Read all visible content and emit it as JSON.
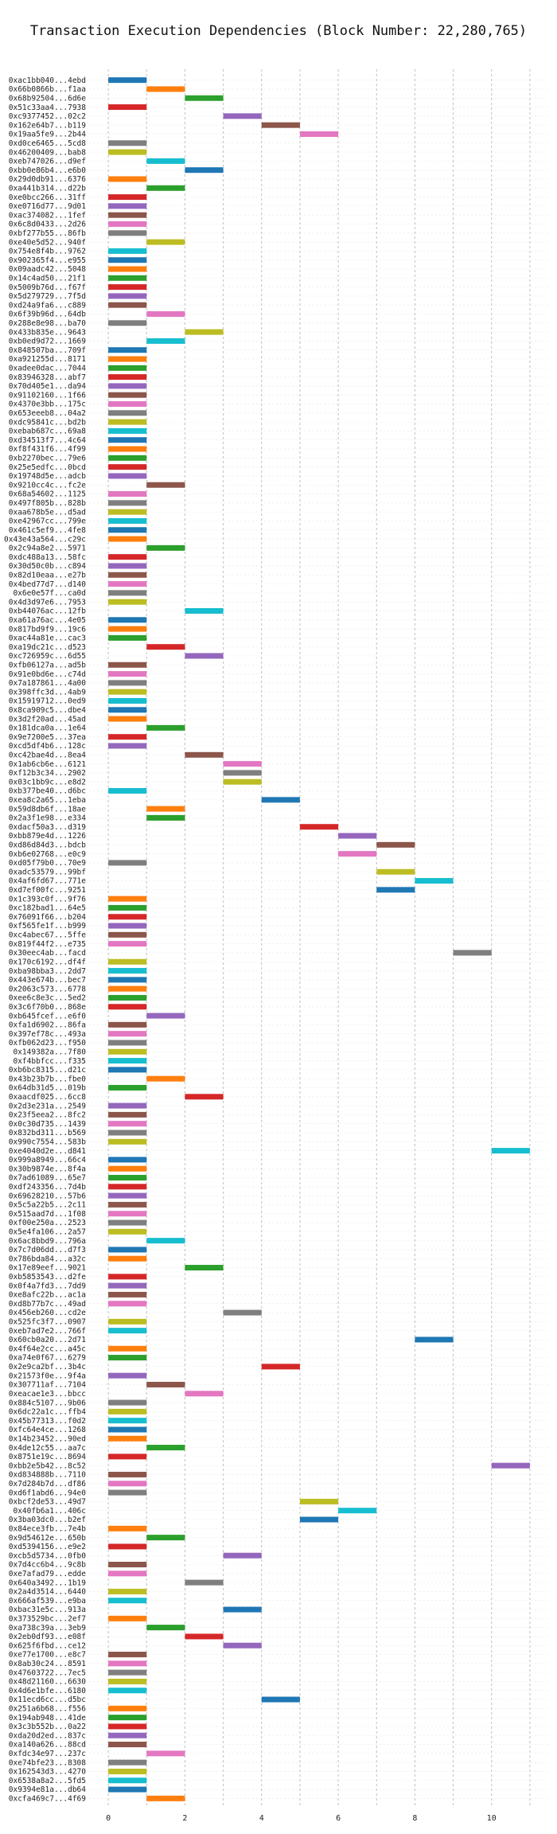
{
  "chart_data": {
    "type": "bar",
    "subtype": "gantt",
    "title": "Transaction Execution Dependencies (Block Number: 22,280,765)",
    "xlabel": "",
    "ylabel": "",
    "xlim": [
      -0.5,
      11.5
    ],
    "xticks": [
      0,
      2,
      4,
      6,
      8,
      10
    ],
    "grid": true,
    "palette": [
      "#1f77b4",
      "#ff7f0e",
      "#2ca02c",
      "#d62728",
      "#9467bd",
      "#8c564b",
      "#e377c2",
      "#7f7f7f",
      "#bcbd22",
      "#17becf"
    ],
    "transactions": [
      {
        "hash": "0xac1bb040...4ebd",
        "start": 0
      },
      {
        "hash": "0x66b0866b...f1aa",
        "start": 1
      },
      {
        "hash": "0x68b92504...6d6e",
        "start": 2
      },
      {
        "hash": "0x51c33aa4...7938",
        "start": 0
      },
      {
        "hash": "0xc9377452...02c2",
        "start": 3
      },
      {
        "hash": "0x162e64b7...b119",
        "start": 4
      },
      {
        "hash": "0x19aa5fe9...2b44",
        "start": 5
      },
      {
        "hash": "0xd0ce6465...5cd8",
        "start": 0
      },
      {
        "hash": "0x46200409...bab8",
        "start": 0
      },
      {
        "hash": "0xeb747026...d9ef",
        "start": 1
      },
      {
        "hash": "0xbb0e86b4...e6b0",
        "start": 2
      },
      {
        "hash": "0x29d0db91...6376",
        "start": 0
      },
      {
        "hash": "0xa441b314...d22b",
        "start": 1
      },
      {
        "hash": "0xe0bcc266...31ff",
        "start": 0
      },
      {
        "hash": "0xe0716d77...9d01",
        "start": 0
      },
      {
        "hash": "0xac374082...1fef",
        "start": 0
      },
      {
        "hash": "0x6c8d0433...2d26",
        "start": 0
      },
      {
        "hash": "0xbf277b55...86fb",
        "start": 0
      },
      {
        "hash": "0xe40e5d52...940f",
        "start": 1
      },
      {
        "hash": "0x754e8f4b...9762",
        "start": 0
      },
      {
        "hash": "0x902365f4...e955",
        "start": 0
      },
      {
        "hash": "0x09aadc42...5048",
        "start": 0
      },
      {
        "hash": "0x14c4ad50...21f1",
        "start": 0
      },
      {
        "hash": "0x5009b76d...f67f",
        "start": 0
      },
      {
        "hash": "0x5d279729...7f5d",
        "start": 0
      },
      {
        "hash": "0xd24a9fa6...c889",
        "start": 0
      },
      {
        "hash": "0x6f39b96d...64db",
        "start": 1
      },
      {
        "hash": "0x288e8e98...ba70",
        "start": 0
      },
      {
        "hash": "0x433b835e...9643",
        "start": 2
      },
      {
        "hash": "0xb0ed9d72...1669",
        "start": 1
      },
      {
        "hash": "0x848507ba...709f",
        "start": 0
      },
      {
        "hash": "0xa921255d...8171",
        "start": 0
      },
      {
        "hash": "0xadee0dac...7044",
        "start": 0
      },
      {
        "hash": "0x83946328...abf7",
        "start": 0
      },
      {
        "hash": "0x70d405e1...da94",
        "start": 0
      },
      {
        "hash": "0x91102160...1f66",
        "start": 0
      },
      {
        "hash": "0x4370e3bb...175c",
        "start": 0
      },
      {
        "hash": "0x653eeeb8...04a2",
        "start": 0
      },
      {
        "hash": "0xdc95841c...bd2b",
        "start": 0
      },
      {
        "hash": "0xebab687c...69a8",
        "start": 0
      },
      {
        "hash": "0xd34513f7...4c64",
        "start": 0
      },
      {
        "hash": "0xf8f431f6...4f99",
        "start": 0
      },
      {
        "hash": "0xb2270bec...79e6",
        "start": 0
      },
      {
        "hash": "0x25e5edfc...0bcd",
        "start": 0
      },
      {
        "hash": "0x19748d5e...adcb",
        "start": 0
      },
      {
        "hash": "0x9210cc4c...fc2e",
        "start": 1
      },
      {
        "hash": "0x68a54602...1125",
        "start": 0
      },
      {
        "hash": "0x497f805b...828b",
        "start": 0
      },
      {
        "hash": "0xaa678b5e...d5ad",
        "start": 0
      },
      {
        "hash": "0xe42967cc...799e",
        "start": 0
      },
      {
        "hash": "0x461c5ef9...4fe8",
        "start": 0
      },
      {
        "hash": "0x43e43a564...c29c",
        "start": 0
      },
      {
        "hash": "0x2c94a8e2...5971",
        "start": 1
      },
      {
        "hash": "0xdc488a13...58fc",
        "start": 0
      },
      {
        "hash": "0x30d50c0b...c894",
        "start": 0
      },
      {
        "hash": "0x82d10eaa...e27b",
        "start": 0
      },
      {
        "hash": "0x4bed77d7...d140",
        "start": 0
      },
      {
        "hash": "0x6e0e57f...ca0d",
        "start": 0
      },
      {
        "hash": "0x4d3d97e6...7953",
        "start": 0
      },
      {
        "hash": "0xb44076ac...12fb",
        "start": 2
      },
      {
        "hash": "0xa61a76ac...4e05",
        "start": 0
      },
      {
        "hash": "0x817bd9f9...19c6",
        "start": 0
      },
      {
        "hash": "0xac44a81e...cac3",
        "start": 0
      },
      {
        "hash": "0xa19dc21c...d523",
        "start": 1
      },
      {
        "hash": "0xc726959c...6d55",
        "start": 2
      },
      {
        "hash": "0xfb06127a...ad5b",
        "start": 0
      },
      {
        "hash": "0x91e0bd6e...c74d",
        "start": 0
      },
      {
        "hash": "0x7a187861...4a00",
        "start": 0
      },
      {
        "hash": "0x398ffc3d...4ab9",
        "start": 0
      },
      {
        "hash": "0x15919712...0ed9",
        "start": 0
      },
      {
        "hash": "0x8ca909c5...dbe4",
        "start": 0
      },
      {
        "hash": "0x3d2f20ad...45ad",
        "start": 0
      },
      {
        "hash": "0x181dca0a...1e64",
        "start": 1
      },
      {
        "hash": "0x9e7200e5...37ea",
        "start": 0
      },
      {
        "hash": "0xcd5df4b6...128c",
        "start": 0
      },
      {
        "hash": "0xc42bae4d...8ea4",
        "start": 2
      },
      {
        "hash": "0x1ab6cb6e...6121",
        "start": 3
      },
      {
        "hash": "0xf12b3c34...2902",
        "start": 3
      },
      {
        "hash": "0x03c1bb9c...e8d2",
        "start": 3
      },
      {
        "hash": "0xb377be40...d6bc",
        "start": 0
      },
      {
        "hash": "0xea8c2a65...1eba",
        "start": 4
      },
      {
        "hash": "0x59d8db6f...18ae",
        "start": 1
      },
      {
        "hash": "0x2a3f1e98...e334",
        "start": 1
      },
      {
        "hash": "0xdacf50a3...d319",
        "start": 5
      },
      {
        "hash": "0xbb879e4d...1226",
        "start": 6
      },
      {
        "hash": "0xd86d84d3...bdcb",
        "start": 7
      },
      {
        "hash": "0xb6e02768...e0c9",
        "start": 6
      },
      {
        "hash": "0xd05f79b0...70e9",
        "start": 0
      },
      {
        "hash": "0xadc53579...99bf",
        "start": 7
      },
      {
        "hash": "0x4af6fd67...771e",
        "start": 8
      },
      {
        "hash": "0xd7ef00fc...9251",
        "start": 7
      },
      {
        "hash": "0x1c393c0f...9f76",
        "start": 0
      },
      {
        "hash": "0xc182bad1...64e5",
        "start": 0
      },
      {
        "hash": "0x76091f66...b204",
        "start": 0
      },
      {
        "hash": "0xf565fe1f...b999",
        "start": 0
      },
      {
        "hash": "0xc4abec67...5ffe",
        "start": 0
      },
      {
        "hash": "0x819f44f2...e735",
        "start": 0
      },
      {
        "hash": "0x30eec4ab...facd",
        "start": 9
      },
      {
        "hash": "0x170c6192...df4f",
        "start": 0
      },
      {
        "hash": "0xba98bba3...2dd7",
        "start": 0
      },
      {
        "hash": "0x443e674b...bec7",
        "start": 0
      },
      {
        "hash": "0x2063c573...6778",
        "start": 0
      },
      {
        "hash": "0xee6c8e3c...5ed2",
        "start": 0
      },
      {
        "hash": "0x3c6f70b0...868e",
        "start": 0
      },
      {
        "hash": "0xb645fcef...e6f0",
        "start": 1
      },
      {
        "hash": "0xfa1d6902...86fa",
        "start": 0
      },
      {
        "hash": "0x397ef78c...493a",
        "start": 0
      },
      {
        "hash": "0xfb062d23...f950",
        "start": 0
      },
      {
        "hash": "0x149382a...7f80",
        "start": 0
      },
      {
        "hash": "0xf4bbfcc...f335",
        "start": 0
      },
      {
        "hash": "0xb6bc8315...d21c",
        "start": 0
      },
      {
        "hash": "0x43b23b7b...fbe0",
        "start": 1
      },
      {
        "hash": "0x64db31d5...019b",
        "start": 0
      },
      {
        "hash": "0xaacdf025...6cc8",
        "start": 2
      },
      {
        "hash": "0x2d3e231a...2549",
        "start": 0
      },
      {
        "hash": "0x23f5eea2...8fc2",
        "start": 0
      },
      {
        "hash": "0x0c30d735...1439",
        "start": 0
      },
      {
        "hash": "0x832bd311...b569",
        "start": 0
      },
      {
        "hash": "0x990c7554...583b",
        "start": 0
      },
      {
        "hash": "0xe4040d2e...d841",
        "start": 10
      },
      {
        "hash": "0x999a8949...66c4",
        "start": 0
      },
      {
        "hash": "0x30b9874e...8f4a",
        "start": 0
      },
      {
        "hash": "0x7ad61089...65e7",
        "start": 0
      },
      {
        "hash": "0xdf243356...7d4b",
        "start": 0
      },
      {
        "hash": "0x69628210...57b6",
        "start": 0
      },
      {
        "hash": "0x5c5a22b5...2c11",
        "start": 0
      },
      {
        "hash": "0x515aad7d...1f08",
        "start": 0
      },
      {
        "hash": "0xf00e250a...2523",
        "start": 0
      },
      {
        "hash": "0x5e4fa106...2a57",
        "start": 0
      },
      {
        "hash": "0x6ac8bbd9...796a",
        "start": 1
      },
      {
        "hash": "0x7c7d06dd...d7f3",
        "start": 0
      },
      {
        "hash": "0x786bda84...a32c",
        "start": 0
      },
      {
        "hash": "0x17e89eef...9021",
        "start": 2
      },
      {
        "hash": "0xb5853543...d2fe",
        "start": 0
      },
      {
        "hash": "0x0f4a7fd3...7dd9",
        "start": 0
      },
      {
        "hash": "0xe8afc22b...ac1a",
        "start": 0
      },
      {
        "hash": "0xd8b77b7c...49ad",
        "start": 0
      },
      {
        "hash": "0x456eb260...cd2e",
        "start": 3
      },
      {
        "hash": "0x525fc3f7...0907",
        "start": 0
      },
      {
        "hash": "0xeb7ad7e2...766f",
        "start": 0
      },
      {
        "hash": "0x60cb0a20...2d71",
        "start": 8
      },
      {
        "hash": "0x4f64e2cc...a45c",
        "start": 0
      },
      {
        "hash": "0xa74e0f67...6279",
        "start": 0
      },
      {
        "hash": "0x2e9ca2bf...3b4c",
        "start": 4
      },
      {
        "hash": "0x21573f0e...9f4a",
        "start": 0
      },
      {
        "hash": "0x307711af...7104",
        "start": 1
      },
      {
        "hash": "0xeacae1e3...bbcc",
        "start": 2
      },
      {
        "hash": "0x884c5107...9b06",
        "start": 0
      },
      {
        "hash": "0x6dc22a1c...ffb4",
        "start": 0
      },
      {
        "hash": "0x45b77313...f0d2",
        "start": 0
      },
      {
        "hash": "0xfc64e4ce...1268",
        "start": 0
      },
      {
        "hash": "0x14b23452...90ed",
        "start": 0
      },
      {
        "hash": "0x4de12c55...aa7c",
        "start": 1
      },
      {
        "hash": "0x8751e19c...8694",
        "start": 0
      },
      {
        "hash": "0xbb2e5b42...8c52",
        "start": 10
      },
      {
        "hash": "0xd834888b...7110",
        "start": 0
      },
      {
        "hash": "0x7d284b7d...df86",
        "start": 0
      },
      {
        "hash": "0xd6f1abd6...94e0",
        "start": 0
      },
      {
        "hash": "0xbcf2de53...49d7",
        "start": 5
      },
      {
        "hash": "0x40fb6a1...406c",
        "start": 6
      },
      {
        "hash": "0x3ba03dc0...b2ef",
        "start": 5
      },
      {
        "hash": "0x84ece3fb...7e4b",
        "start": 0
      },
      {
        "hash": "0x9d54612e...650b",
        "start": 1
      },
      {
        "hash": "0xd5394156...e9e2",
        "start": 0
      },
      {
        "hash": "0xcb5d5734...0fb0",
        "start": 3
      },
      {
        "hash": "0x7d4cc6b4...9c8b",
        "start": 0
      },
      {
        "hash": "0xe7afad79...edde",
        "start": 0
      },
      {
        "hash": "0x640a3492...1b19",
        "start": 2
      },
      {
        "hash": "0x2a4d3514...6440",
        "start": 0
      },
      {
        "hash": "0x666af539...e9ba",
        "start": 0
      },
      {
        "hash": "0xbac31e5c...913a",
        "start": 3
      },
      {
        "hash": "0x373529bc...2ef7",
        "start": 0
      },
      {
        "hash": "0xa738c39a...3eb9",
        "start": 1
      },
      {
        "hash": "0x2eb0df93...e08f",
        "start": 2
      },
      {
        "hash": "0x625f6fbd...ce12",
        "start": 3
      },
      {
        "hash": "0xe77e1700...e8c7",
        "start": 0
      },
      {
        "hash": "0x8ab30c24...8591",
        "start": 0
      },
      {
        "hash": "0x47603722...7ec5",
        "start": 0
      },
      {
        "hash": "0x48d21160...6630",
        "start": 0
      },
      {
        "hash": "0x4d6e1bfe...6180",
        "start": 0
      },
      {
        "hash": "0x11ecd6cc...d5bc",
        "start": 4
      },
      {
        "hash": "0x251a6b68...f556",
        "start": 0
      },
      {
        "hash": "0x194ab948...41de",
        "start": 0
      },
      {
        "hash": "0x3c3b552b...0a22",
        "start": 0
      },
      {
        "hash": "0xda20d2ed...837c",
        "start": 0
      },
      {
        "hash": "0xa140a626...88cd",
        "start": 0
      },
      {
        "hash": "0xfdc34e97...237c",
        "start": 1
      },
      {
        "hash": "0xe74bfe23...8308",
        "start": 0
      },
      {
        "hash": "0x162543d3...4270",
        "start": 0
      },
      {
        "hash": "0x6538a8a2...5fd5",
        "start": 0
      },
      {
        "hash": "0x9394e81a...db64",
        "start": 0
      },
      {
        "hash": "0xcfa469c7...4f69",
        "start": 1
      }
    ]
  }
}
